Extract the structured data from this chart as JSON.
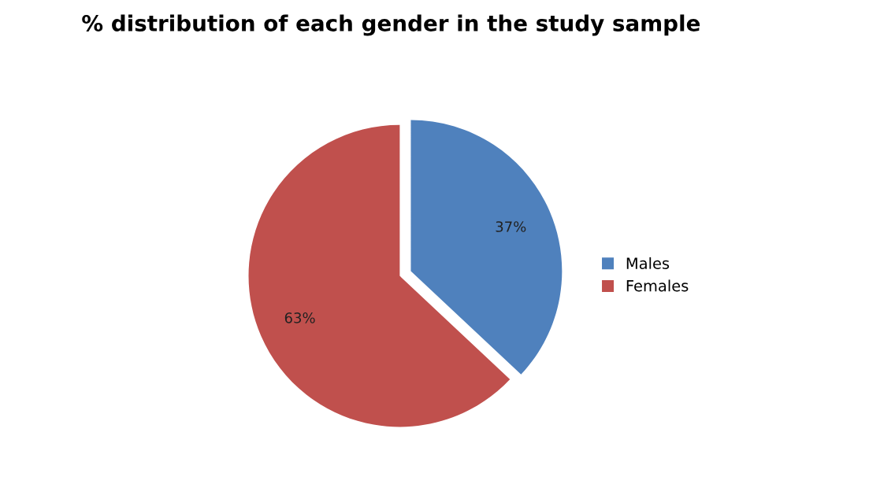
{
  "chart_data": {
    "type": "pie",
    "title": "% distribution of each gender in the study sample",
    "categories": [
      "Males",
      "Females"
    ],
    "values": [
      37,
      63
    ],
    "colors": [
      "#4f81bd",
      "#c0504d"
    ],
    "value_labels": [
      "37%",
      "63%"
    ],
    "legend": "right"
  }
}
